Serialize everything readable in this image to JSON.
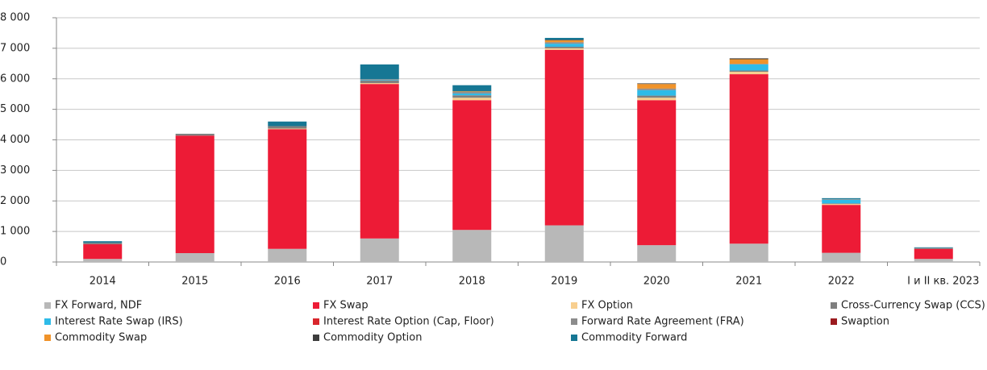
{
  "chart_data": {
    "type": "bar",
    "stacked": true,
    "categories": [
      "2014",
      "2015",
      "2016",
      "2017",
      "2018",
      "2019",
      "2020",
      "2021",
      "2022",
      "I и II кв. 2023"
    ],
    "series": [
      {
        "name": "FX Forward, NDF",
        "color": "#b8b8b8",
        "values": [
          100,
          290,
          430,
          770,
          1050,
          1200,
          550,
          600,
          300,
          100
        ]
      },
      {
        "name": "FX Swap",
        "color": "#ed1b36",
        "values": [
          480,
          3850,
          3920,
          5060,
          4250,
          5750,
          4750,
          5550,
          1570,
          330
        ]
      },
      {
        "name": "FX Option",
        "color": "#f8cf8f",
        "values": [
          0,
          0,
          20,
          30,
          80,
          50,
          80,
          80,
          30,
          0
        ]
      },
      {
        "name": "Cross-Currency Swap (CCS)",
        "color": "#7f7f7f",
        "values": [
          50,
          60,
          80,
          80,
          80,
          50,
          70,
          40,
          20,
          20
        ]
      },
      {
        "name": "Interest Rate Swap (IRS)",
        "color": "#2ebbe8",
        "values": [
          0,
          0,
          0,
          20,
          60,
          100,
          180,
          200,
          120,
          0
        ]
      },
      {
        "name": "Interest Rate Option (Cap, Floor)",
        "color": "#d9262c",
        "values": [
          0,
          0,
          0,
          0,
          0,
          0,
          0,
          0,
          0,
          0
        ]
      },
      {
        "name": "Forward Rate Agreement (FRA)",
        "color": "#8c8c8c",
        "values": [
          0,
          0,
          0,
          30,
          50,
          50,
          50,
          20,
          20,
          10
        ]
      },
      {
        "name": "Swaption",
        "color": "#9b1b1f",
        "values": [
          0,
          0,
          0,
          0,
          0,
          0,
          0,
          0,
          0,
          0
        ]
      },
      {
        "name": "Commodity Swap",
        "color": "#f0932a",
        "values": [
          0,
          0,
          0,
          0,
          20,
          60,
          150,
          150,
          0,
          0
        ]
      },
      {
        "name": "Commodity Option",
        "color": "#3d3d3d",
        "values": [
          0,
          0,
          0,
          0,
          0,
          20,
          20,
          30,
          0,
          0
        ]
      },
      {
        "name": "Commodity Forward",
        "color": "#167794",
        "values": [
          50,
          0,
          150,
          480,
          200,
          60,
          0,
          0,
          30,
          20
        ]
      }
    ],
    "ylim": [
      0,
      8000
    ],
    "yticks": [
      0,
      {
        "value": 1000,
        "label": "1 000"
      },
      {
        "value": 2000,
        "label": "2 000"
      },
      {
        "value": 3000,
        "label": "3 000"
      },
      {
        "value": 4000,
        "label": "4 000"
      },
      {
        "value": 5000,
        "label": "5 000"
      },
      {
        "value": 6000,
        "label": "6 000"
      },
      {
        "value": 7000,
        "label": "7 000"
      },
      {
        "value": 8000,
        "label": "8 000"
      }
    ],
    "grid": true
  }
}
